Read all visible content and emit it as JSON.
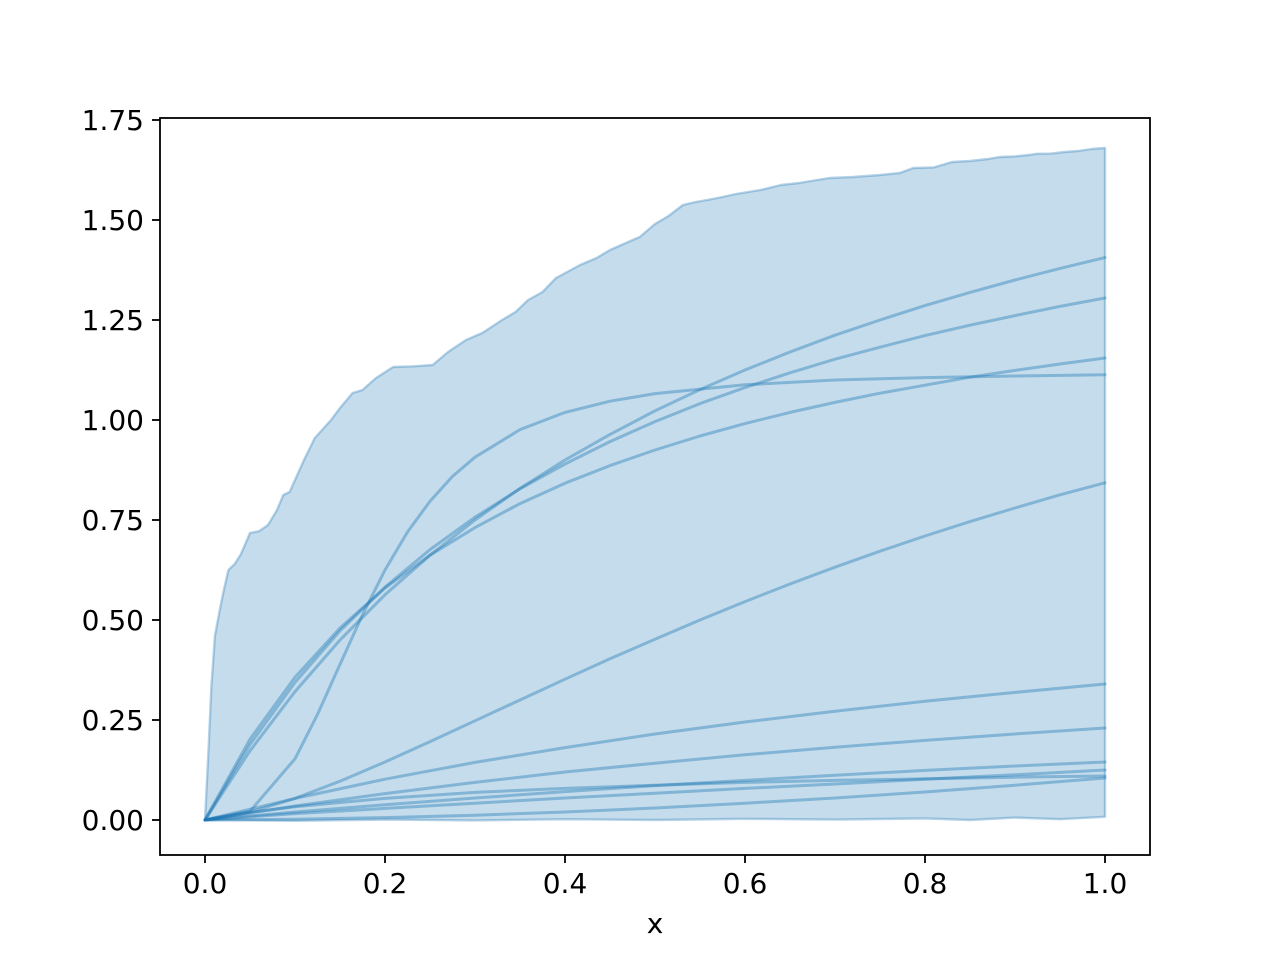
{
  "chart_data": {
    "type": "line",
    "title": "",
    "xlabel": "x",
    "ylabel": "",
    "legend": "none",
    "grid": false,
    "xlim": [
      -0.05,
      1.05
    ],
    "ylim": [
      -0.0875,
      1.755
    ],
    "xticks": [
      0.0,
      0.2,
      0.4,
      0.6,
      0.8,
      1.0
    ],
    "xtick_labels": [
      "0.0",
      "0.2",
      "0.4",
      "0.6",
      "0.8",
      "1.0"
    ],
    "yticks": [
      0.0,
      0.25,
      0.5,
      0.75,
      1.0,
      1.25,
      1.5,
      1.75
    ],
    "ytick_labels": [
      "0.00",
      "0.25",
      "0.50",
      "0.75",
      "1.00",
      "1.25",
      "1.50",
      "1.75"
    ],
    "colors": {
      "line": "#1f77b4",
      "line_alpha": 0.4,
      "band_fill": "#1f77b4",
      "band_fill_alpha": 0.26,
      "band_edge_alpha": 0.32,
      "axis": "#000000",
      "background": "#ffffff"
    },
    "band": {
      "name": "envelope-band",
      "upper": [
        [
          0,
          0
        ],
        [
          0.004,
          0.18
        ],
        [
          0.007,
          0.33
        ],
        [
          0.011,
          0.46
        ],
        [
          0.016,
          0.52
        ],
        [
          0.02,
          0.565
        ],
        [
          0.026,
          0.625
        ],
        [
          0.033,
          0.64
        ],
        [
          0.04,
          0.665
        ],
        [
          0.05,
          0.7175
        ],
        [
          0.06,
          0.722
        ],
        [
          0.07,
          0.7375
        ],
        [
          0.08,
          0.775
        ],
        [
          0.087,
          0.8125
        ],
        [
          0.094,
          0.82
        ],
        [
          0.1,
          0.85
        ],
        [
          0.11,
          0.9
        ],
        [
          0.122,
          0.955
        ],
        [
          0.13,
          0.975
        ],
        [
          0.14,
          1.0
        ],
        [
          0.15,
          1.03
        ],
        [
          0.164,
          1.0675
        ],
        [
          0.175,
          1.075
        ],
        [
          0.19,
          1.105
        ],
        [
          0.209,
          1.1325
        ],
        [
          0.23,
          1.134
        ],
        [
          0.253,
          1.1375
        ],
        [
          0.27,
          1.17
        ],
        [
          0.29,
          1.2
        ],
        [
          0.308,
          1.2175
        ],
        [
          0.32,
          1.235
        ],
        [
          0.33,
          1.25
        ],
        [
          0.345,
          1.27
        ],
        [
          0.359,
          1.3
        ],
        [
          0.375,
          1.32
        ],
        [
          0.39,
          1.355
        ],
        [
          0.4167,
          1.3875
        ],
        [
          0.435,
          1.405
        ],
        [
          0.45,
          1.425
        ],
        [
          0.465,
          1.44
        ],
        [
          0.483,
          1.4575
        ],
        [
          0.5,
          1.49
        ],
        [
          0.515,
          1.51
        ],
        [
          0.531,
          1.5375
        ],
        [
          0.545,
          1.545
        ],
        [
          0.558,
          1.55
        ],
        [
          0.575,
          1.5575
        ],
        [
          0.59,
          1.565
        ],
        [
          0.617,
          1.575
        ],
        [
          0.64,
          1.5875
        ],
        [
          0.66,
          1.5925
        ],
        [
          0.68,
          1.6
        ],
        [
          0.694,
          1.605
        ],
        [
          0.72,
          1.6075
        ],
        [
          0.75,
          1.6125
        ],
        [
          0.772,
          1.6175
        ],
        [
          0.787,
          1.63
        ],
        [
          0.81,
          1.6315
        ],
        [
          0.83,
          1.645
        ],
        [
          0.85,
          1.6475
        ],
        [
          0.87,
          1.6525
        ],
        [
          0.883,
          1.6575
        ],
        [
          0.9,
          1.659
        ],
        [
          0.915,
          1.6625
        ],
        [
          0.924,
          1.6655
        ],
        [
          0.94,
          1.666
        ],
        [
          0.955,
          1.67
        ],
        [
          0.97,
          1.6725
        ],
        [
          0.985,
          1.6775
        ],
        [
          1.0,
          1.68
        ]
      ],
      "lower": [
        [
          0,
          0
        ],
        [
          0.1,
          -0.002
        ],
        [
          0.2,
          0.001
        ],
        [
          0.3,
          -0.001
        ],
        [
          0.4,
          0.002
        ],
        [
          0.5,
          0.0
        ],
        [
          0.6,
          0.003
        ],
        [
          0.7,
          0.001
        ],
        [
          0.8,
          0.004
        ],
        [
          0.85,
          0.0
        ],
        [
          0.9,
          0.006
        ],
        [
          0.95,
          0.002
        ],
        [
          1.0,
          0.008
        ]
      ]
    },
    "series": [
      {
        "name": "line-1",
        "points": [
          [
            0,
            0
          ],
          [
            0.05,
            0.173
          ],
          [
            0.1,
            0.321
          ],
          [
            0.15,
            0.45
          ],
          [
            0.2,
            0.563
          ],
          [
            0.25,
            0.662
          ],
          [
            0.3,
            0.75
          ],
          [
            0.35,
            0.829
          ],
          [
            0.4,
            0.9
          ],
          [
            0.45,
            0.964
          ],
          [
            0.5,
            1.023
          ],
          [
            0.55,
            1.076
          ],
          [
            0.6,
            1.125
          ],
          [
            0.65,
            1.17
          ],
          [
            0.7,
            1.212
          ],
          [
            0.75,
            1.25
          ],
          [
            0.8,
            1.286
          ],
          [
            0.85,
            1.319
          ],
          [
            0.9,
            1.35
          ],
          [
            0.95,
            1.379
          ],
          [
            1,
            1.406
          ]
        ]
      },
      {
        "name": "line-2",
        "points": [
          [
            0,
            0
          ],
          [
            0.05,
            0.189
          ],
          [
            0.1,
            0.344
          ],
          [
            0.15,
            0.473
          ],
          [
            0.2,
            0.582
          ],
          [
            0.25,
            0.676
          ],
          [
            0.3,
            0.757
          ],
          [
            0.35,
            0.828
          ],
          [
            0.4,
            0.89
          ],
          [
            0.45,
            0.946
          ],
          [
            0.5,
            0.996
          ],
          [
            0.55,
            1.041
          ],
          [
            0.6,
            1.081
          ],
          [
            0.65,
            1.118
          ],
          [
            0.7,
            1.152
          ],
          [
            0.75,
            1.182
          ],
          [
            0.8,
            1.211
          ],
          [
            0.85,
            1.237
          ],
          [
            0.9,
            1.261
          ],
          [
            0.95,
            1.284
          ],
          [
            1,
            1.305
          ]
        ]
      },
      {
        "name": "line-3",
        "points": [
          [
            0,
            0
          ],
          [
            0.05,
            0.202
          ],
          [
            0.1,
            0.357
          ],
          [
            0.15,
            0.48
          ],
          [
            0.2,
            0.58
          ],
          [
            0.25,
            0.662
          ],
          [
            0.3,
            0.731
          ],
          [
            0.35,
            0.791
          ],
          [
            0.4,
            0.842
          ],
          [
            0.45,
            0.886
          ],
          [
            0.5,
            0.925
          ],
          [
            0.55,
            0.96
          ],
          [
            0.6,
            0.991
          ],
          [
            0.65,
            1.019
          ],
          [
            0.7,
            1.044
          ],
          [
            0.75,
            1.067
          ],
          [
            0.8,
            1.087
          ],
          [
            0.85,
            1.107
          ],
          [
            0.9,
            1.124
          ],
          [
            0.95,
            1.14
          ],
          [
            1,
            1.155
          ]
        ]
      },
      {
        "name": "line-4",
        "points": [
          [
            0,
            0
          ],
          [
            0.05,
            0.022
          ],
          [
            0.1,
            0.153
          ],
          [
            0.125,
            0.264
          ],
          [
            0.15,
            0.389
          ],
          [
            0.175,
            0.513
          ],
          [
            0.2,
            0.625
          ],
          [
            0.225,
            0.72
          ],
          [
            0.25,
            0.797
          ],
          [
            0.275,
            0.859
          ],
          [
            0.3,
            0.907
          ],
          [
            0.35,
            0.976
          ],
          [
            0.4,
            1.019
          ],
          [
            0.45,
            1.047
          ],
          [
            0.5,
            1.066
          ],
          [
            0.6,
            1.088
          ],
          [
            0.7,
            1.1
          ],
          [
            0.8,
            1.106
          ],
          [
            0.9,
            1.11
          ],
          [
            1,
            1.113
          ]
        ]
      },
      {
        "name": "line-5",
        "points": [
          [
            0,
            0
          ],
          [
            0.05,
            0.02
          ],
          [
            0.1,
            0.054
          ],
          [
            0.15,
            0.097
          ],
          [
            0.2,
            0.145
          ],
          [
            0.25,
            0.196
          ],
          [
            0.3,
            0.248
          ],
          [
            0.35,
            0.3
          ],
          [
            0.4,
            0.352
          ],
          [
            0.45,
            0.403
          ],
          [
            0.5,
            0.452
          ],
          [
            0.55,
            0.5
          ],
          [
            0.6,
            0.546
          ],
          [
            0.65,
            0.59
          ],
          [
            0.7,
            0.632
          ],
          [
            0.75,
            0.672
          ],
          [
            0.8,
            0.71
          ],
          [
            0.85,
            0.746
          ],
          [
            0.9,
            0.78
          ],
          [
            0.95,
            0.813
          ],
          [
            1,
            0.843
          ]
        ]
      },
      {
        "name": "line-6",
        "points": [
          [
            0,
            0
          ],
          [
            0.1,
            0.054
          ],
          [
            0.2,
            0.102
          ],
          [
            0.3,
            0.144
          ],
          [
            0.4,
            0.181
          ],
          [
            0.5,
            0.215
          ],
          [
            0.6,
            0.245
          ],
          [
            0.7,
            0.272
          ],
          [
            0.8,
            0.297
          ],
          [
            0.9,
            0.319
          ],
          [
            1,
            0.34
          ]
        ]
      },
      {
        "name": "line-7",
        "points": [
          [
            0,
            0
          ],
          [
            0.1,
            0.035
          ],
          [
            0.2,
            0.066
          ],
          [
            0.3,
            0.094
          ],
          [
            0.4,
            0.12
          ],
          [
            0.5,
            0.142
          ],
          [
            0.6,
            0.163
          ],
          [
            0.7,
            0.182
          ],
          [
            0.8,
            0.199
          ],
          [
            0.9,
            0.215
          ],
          [
            1,
            0.23
          ]
        ]
      },
      {
        "name": "line-8",
        "points": [
          [
            0,
            0
          ],
          [
            0.1,
            0.02
          ],
          [
            0.2,
            0.038
          ],
          [
            0.3,
            0.055
          ],
          [
            0.4,
            0.071
          ],
          [
            0.5,
            0.086
          ],
          [
            0.6,
            0.099
          ],
          [
            0.7,
            0.112
          ],
          [
            0.8,
            0.124
          ],
          [
            0.9,
            0.135
          ],
          [
            1,
            0.145
          ]
        ]
      },
      {
        "name": "line-9",
        "points": [
          [
            0,
            0
          ],
          [
            0.1,
            0.016
          ],
          [
            0.2,
            0.029
          ],
          [
            0.3,
            0.042
          ],
          [
            0.4,
            0.055
          ],
          [
            0.5,
            0.067
          ],
          [
            0.6,
            0.079
          ],
          [
            0.7,
            0.09
          ],
          [
            0.8,
            0.102
          ],
          [
            0.9,
            0.113
          ],
          [
            1,
            0.125
          ]
        ]
      },
      {
        "name": "line-10",
        "points": [
          [
            0,
            0
          ],
          [
            0.05,
            0.019
          ],
          [
            0.1,
            0.033
          ],
          [
            0.2,
            0.054
          ],
          [
            0.3,
            0.069
          ],
          [
            0.4,
            0.079
          ],
          [
            0.5,
            0.087
          ],
          [
            0.6,
            0.094
          ],
          [
            0.7,
            0.099
          ],
          [
            0.8,
            0.103
          ],
          [
            0.9,
            0.107
          ],
          [
            1,
            0.11
          ]
        ]
      },
      {
        "name": "line-11",
        "points": [
          [
            0,
            0
          ],
          [
            0.1,
            0.002
          ],
          [
            0.2,
            0.006
          ],
          [
            0.3,
            0.012
          ],
          [
            0.4,
            0.02
          ],
          [
            0.5,
            0.03
          ],
          [
            0.6,
            0.042
          ],
          [
            0.7,
            0.055
          ],
          [
            0.8,
            0.07
          ],
          [
            0.9,
            0.087
          ],
          [
            1,
            0.105
          ]
        ]
      }
    ]
  }
}
